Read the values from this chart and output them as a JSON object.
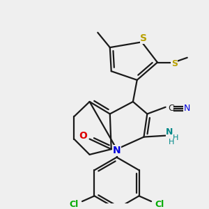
{
  "background_color": "#efefef",
  "bond_color": "#1a1a1a",
  "bond_width": 1.6,
  "atom_colors": {
    "S": "#b8a000",
    "N": "#0000dd",
    "O": "#dd0000",
    "Cl": "#00aa00",
    "NH2": "#008888",
    "C": "#1a1a1a"
  },
  "figsize": [
    3.0,
    3.0
  ],
  "dpi": 100
}
